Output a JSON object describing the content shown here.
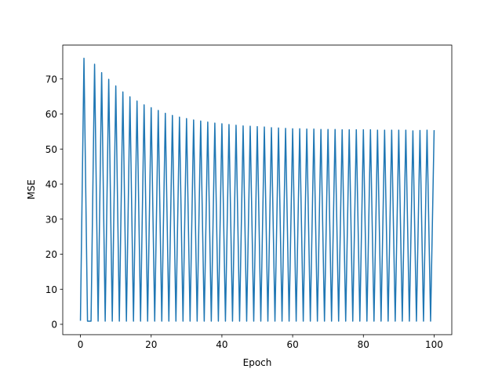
{
  "chart_data": {
    "type": "line",
    "x_label": "Epoch",
    "y_label": "MSE",
    "x": [
      0,
      1,
      2,
      3,
      4,
      5,
      6,
      7,
      8,
      9,
      10,
      11,
      12,
      13,
      14,
      15,
      16,
      17,
      18,
      19,
      20,
      21,
      22,
      23,
      24,
      25,
      26,
      27,
      28,
      29,
      30,
      31,
      32,
      33,
      34,
      35,
      36,
      37,
      38,
      39,
      40,
      41,
      42,
      43,
      44,
      45,
      46,
      47,
      48,
      49,
      50,
      51,
      52,
      53,
      54,
      55,
      56,
      57,
      58,
      59,
      60,
      61,
      62,
      63,
      64,
      65,
      66,
      67,
      68,
      69,
      70,
      71,
      72,
      73,
      74,
      75,
      76,
      77,
      78,
      79,
      80,
      81,
      82,
      83,
      84,
      85,
      86,
      87,
      88,
      89,
      90,
      91,
      92,
      93,
      94,
      95,
      96,
      97,
      98,
      99,
      100
    ],
    "series": [
      {
        "color": "#1f77b4",
        "values": [
          1.0,
          75.9,
          0.9,
          0.9,
          74.2,
          0.9,
          71.8,
          0.9,
          69.9,
          0.9,
          68.0,
          0.9,
          66.3,
          0.9,
          64.9,
          0.9,
          63.7,
          0.9,
          62.6,
          0.9,
          61.8,
          0.9,
          61.0,
          0.9,
          60.2,
          0.9,
          59.6,
          0.9,
          59.1,
          0.9,
          58.7,
          0.9,
          58.3,
          0.9,
          58.0,
          0.9,
          57.7,
          0.9,
          57.4,
          0.9,
          57.2,
          0.9,
          57.0,
          0.9,
          56.8,
          0.9,
          56.6,
          0.9,
          56.5,
          0.9,
          56.4,
          0.9,
          56.3,
          0.9,
          56.1,
          0.9,
          56.0,
          0.9,
          55.9,
          0.9,
          55.8,
          0.9,
          55.8,
          0.9,
          55.7,
          0.9,
          55.7,
          0.9,
          55.6,
          0.9,
          55.6,
          0.9,
          55.6,
          0.9,
          55.5,
          0.9,
          55.5,
          0.9,
          55.5,
          0.9,
          55.5,
          0.9,
          55.5,
          0.9,
          55.4,
          0.9,
          55.4,
          0.9,
          55.4,
          0.9,
          55.4,
          0.9,
          55.4,
          0.9,
          55.2,
          0.9,
          55.3,
          0.9,
          55.4,
          0.9,
          55.4
        ]
      }
    ],
    "xlim": [
      -5,
      105
    ],
    "xticks": [
      0,
      20,
      40,
      60,
      80,
      100
    ],
    "ylim": [
      -2.95,
      79.65
    ],
    "yticks": [
      0,
      10,
      20,
      30,
      40,
      50,
      60,
      70
    ],
    "grid": false
  }
}
